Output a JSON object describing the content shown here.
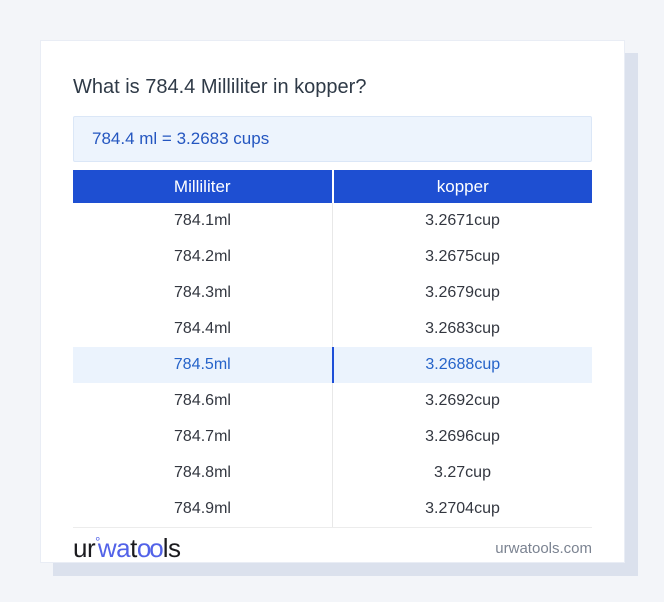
{
  "page": {
    "title": "What is 784.4 Milliliter in kopper?"
  },
  "result_box": {
    "text": "784.4 ml = 3.2683 cups"
  },
  "table": {
    "headers": [
      "Milliliter",
      "kopper"
    ],
    "highlighted_index": 4,
    "rows": [
      {
        "ml": "784.1ml",
        "cup": "3.2671cup"
      },
      {
        "ml": "784.2ml",
        "cup": "3.2675cup"
      },
      {
        "ml": "784.3ml",
        "cup": "3.2679cup"
      },
      {
        "ml": "784.4ml",
        "cup": "3.2683cup"
      },
      {
        "ml": "784.5ml",
        "cup": "3.2688cup"
      },
      {
        "ml": "784.6ml",
        "cup": "3.2692cup"
      },
      {
        "ml": "784.7ml",
        "cup": "3.2696cup"
      },
      {
        "ml": "784.8ml",
        "cup": "3.27cup"
      },
      {
        "ml": "784.9ml",
        "cup": "3.2704cup"
      }
    ]
  },
  "footer": {
    "logo": {
      "seg1": "ur",
      "ring": "°",
      "seg2": "wa",
      "seg3": "t",
      "seg4": "oo",
      "seg5": "ls"
    },
    "site": "urwatools.com"
  },
  "colors": {
    "page_background": "#f3f5f9",
    "card_background": "#ffffff",
    "card_shadow": "#dbe1ed",
    "header_blue": "#1e4fd2",
    "result_box_bg": "#edf4fd",
    "result_text_blue": "#2456c0",
    "highlight_row_bg": "#ebf3fd",
    "highlight_text_blue": "#2563c9",
    "highlight_divider_blue": "#1d4ed8",
    "logo_blue": "#5262e8",
    "body_text": "#333740",
    "muted_text": "#7b8391"
  }
}
